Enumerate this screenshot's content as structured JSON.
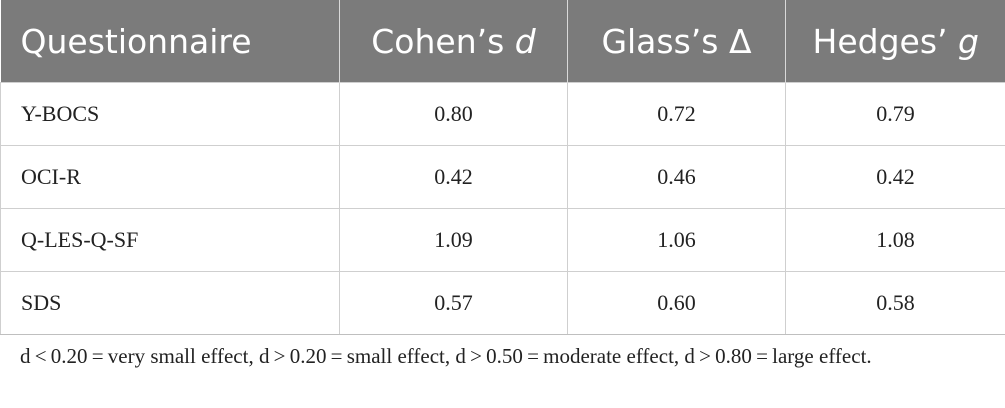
{
  "table": {
    "headers": {
      "questionnaire": "Questionnaire",
      "cohen_prefix": "Cohen’s ",
      "cohen_symbol": "d",
      "glass_prefix": "Glass’s ",
      "glass_symbol": "Δ",
      "hedges_prefix": "Hedges’ ",
      "hedges_symbol": "g"
    },
    "rows": [
      {
        "questionnaire": "Y-BOCS",
        "cohens_d": "0.80",
        "glass_delta": "0.72",
        "hedges_g": "0.79"
      },
      {
        "questionnaire": "OCI-R",
        "cohens_d": "0.42",
        "glass_delta": "0.46",
        "hedges_g": "0.42"
      },
      {
        "questionnaire": "Q-LES-Q-SF",
        "cohens_d": "1.09",
        "glass_delta": "1.06",
        "hedges_g": "1.08"
      },
      {
        "questionnaire": "SDS",
        "cohens_d": "0.57",
        "glass_delta": "0.60",
        "hedges_g": "0.58"
      }
    ]
  },
  "footnote": "d < 0.20 = very small effect, d > 0.20 = small effect, d > 0.50 = moderate effect, d > 0.80 = large effect.",
  "colors": {
    "header_background": "#7b7b7b",
    "header_text": "#ffffff",
    "grid_lines": "#cfcfcf"
  }
}
